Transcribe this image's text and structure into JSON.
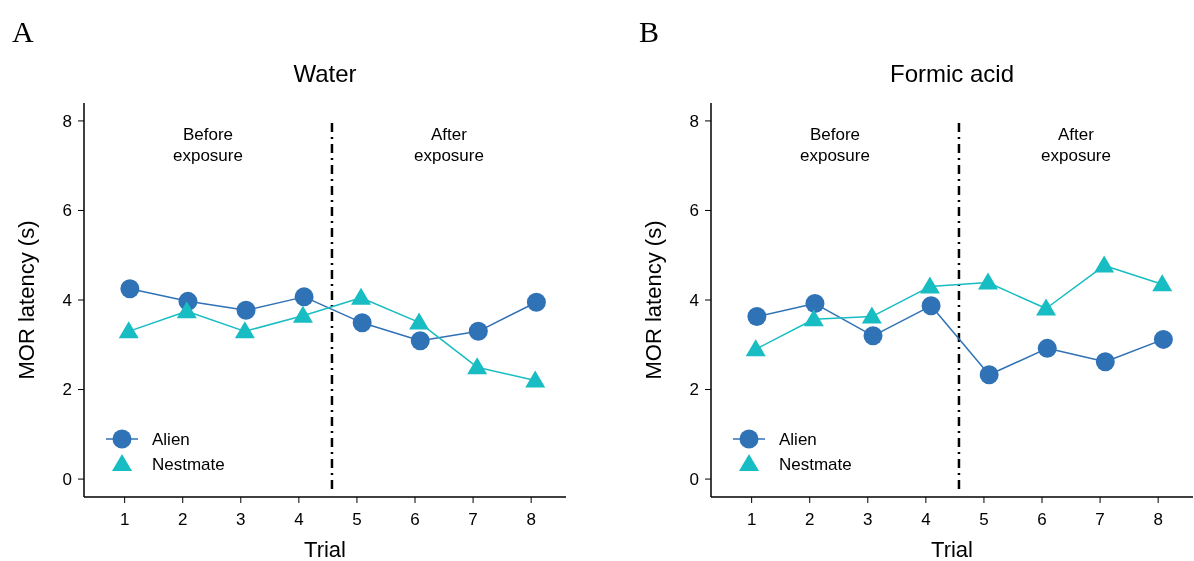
{
  "chart_data": [
    {
      "type": "line",
      "title": "Water",
      "xlabel": "Trial",
      "ylabel": "MOR latency (s)",
      "xlim": [
        0.3,
        8.6
      ],
      "xticks": [
        1,
        2,
        3,
        4,
        5,
        6,
        7,
        8
      ],
      "ylim": [
        -0.4,
        8.4
      ],
      "yticks": [
        0,
        2,
        4,
        6,
        8
      ],
      "grid": false,
      "legend": "bottom left",
      "annotations": [
        "A",
        "Before exposure",
        "After exposure"
      ],
      "ref_lines": [
        {
          "axis": "x",
          "value": 4.57,
          "label": null,
          "color": "#000000",
          "line_style": "dashdot"
        }
      ],
      "series": [
        {
          "name": "Alien",
          "color": "#2f72b6",
          "marker": "circle",
          "x": [
            1.09,
            2.09,
            3.09,
            4.09,
            5.09,
            6.09,
            7.09,
            8.09
          ],
          "values": [
            4.25,
            3.97,
            3.77,
            4.07,
            3.49,
            3.09,
            3.3,
            3.95
          ]
        },
        {
          "name": "Nestmate",
          "color": "#17bdc2",
          "marker": "triangle",
          "x": [
            1.07,
            2.07,
            3.07,
            4.07,
            5.07,
            6.07,
            7.07,
            8.07
          ],
          "values": [
            3.3,
            3.75,
            3.3,
            3.65,
            4.05,
            3.5,
            2.5,
            2.2
          ]
        }
      ]
    },
    {
      "type": "line",
      "title": "Formic acid",
      "xlabel": "Trial",
      "ylabel": "MOR latency (s)",
      "xlim": [
        0.3,
        8.6
      ],
      "xticks": [
        1,
        2,
        3,
        4,
        5,
        6,
        7,
        8
      ],
      "ylim": [
        -0.4,
        8.4
      ],
      "yticks": [
        0,
        2,
        4,
        6,
        8
      ],
      "grid": false,
      "legend": "bottom left",
      "annotations": [
        "B",
        "Before exposure",
        "After exposure"
      ],
      "ref_lines": [
        {
          "axis": "x",
          "value": 4.57,
          "label": null,
          "color": "#000000",
          "line_style": "dashdot"
        }
      ],
      "series": [
        {
          "name": "Alien",
          "color": "#2f72b6",
          "marker": "circle",
          "x": [
            1.09,
            2.09,
            3.09,
            4.09,
            5.09,
            6.09,
            7.09,
            8.09
          ],
          "values": [
            3.63,
            3.92,
            3.2,
            3.87,
            2.33,
            2.92,
            2.62,
            3.12
          ]
        },
        {
          "name": "Nestmate",
          "color": "#17bdc2",
          "marker": "triangle",
          "x": [
            1.07,
            2.07,
            3.07,
            4.07,
            5.07,
            6.07,
            7.07,
            8.07
          ],
          "values": [
            2.9,
            3.57,
            3.63,
            4.3,
            4.39,
            3.81,
            4.77,
            4.35
          ]
        }
      ]
    }
  ]
}
